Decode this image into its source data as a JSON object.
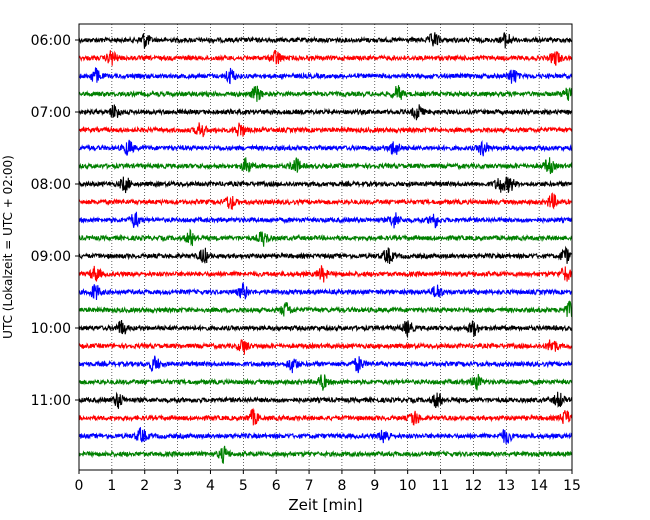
{
  "chart_data": {
    "type": "line",
    "title": "",
    "xlabel": "Zeit  [min]",
    "ylabel": "UTC (Lokalzeit = UTC + 02:00)",
    "xlim": [
      0,
      15
    ],
    "x_ticks": [
      0,
      1,
      2,
      3,
      4,
      5,
      6,
      7,
      8,
      9,
      10,
      11,
      12,
      13,
      14,
      15
    ],
    "x_tick_labels": [
      "0",
      "1",
      "2",
      "3",
      "4",
      "5",
      "6",
      "7",
      "8",
      "9",
      "10",
      "11",
      "12",
      "13",
      "14",
      "15"
    ],
    "grid": "vertical dotted lines at each minute",
    "y_tick_labels": [
      "06:00",
      "07:00",
      "08:00",
      "09:00",
      "10:00",
      "11:00"
    ],
    "trace_interval_minutes": 15,
    "trace_colors_cycle": [
      "#000000",
      "#ff0000",
      "#0000ff",
      "#008000"
    ],
    "traces": [
      {
        "start": "06:00",
        "color": "#000000",
        "events_min": [
          2.0,
          10.8,
          13.0
        ]
      },
      {
        "start": "06:15",
        "color": "#ff0000",
        "events_min": [
          1.0,
          6.0,
          14.5
        ]
      },
      {
        "start": "06:30",
        "color": "#0000ff",
        "events_min": [
          0.5,
          4.6,
          13.2
        ]
      },
      {
        "start": "06:45",
        "color": "#008000",
        "events_min": [
          5.4,
          9.7,
          14.9
        ]
      },
      {
        "start": "07:00",
        "color": "#000000",
        "events_min": [
          1.1,
          10.3
        ]
      },
      {
        "start": "07:15",
        "color": "#ff0000",
        "events_min": [
          3.7,
          4.9
        ]
      },
      {
        "start": "07:30",
        "color": "#0000ff",
        "events_min": [
          1.5,
          9.6,
          12.3
        ]
      },
      {
        "start": "07:45",
        "color": "#008000",
        "events_min": [
          5.1,
          6.6,
          14.3
        ]
      },
      {
        "start": "08:00",
        "color": "#000000",
        "events_min": [
          1.4,
          12.8,
          13.1
        ]
      },
      {
        "start": "08:15",
        "color": "#ff0000",
        "events_min": [
          4.6,
          14.4
        ]
      },
      {
        "start": "08:30",
        "color": "#0000ff",
        "events_min": [
          1.7,
          9.6,
          10.8
        ]
      },
      {
        "start": "08:45",
        "color": "#008000",
        "events_min": [
          3.4,
          5.6
        ]
      },
      {
        "start": "09:00",
        "color": "#000000",
        "events_min": [
          3.8,
          9.4,
          14.8
        ]
      },
      {
        "start": "09:15",
        "color": "#ff0000",
        "events_min": [
          0.5,
          7.4,
          14.8
        ]
      },
      {
        "start": "09:30",
        "color": "#0000ff",
        "events_min": [
          0.5,
          5.0,
          10.9
        ]
      },
      {
        "start": "09:45",
        "color": "#008000",
        "events_min": [
          6.3,
          14.9
        ]
      },
      {
        "start": "10:00",
        "color": "#000000",
        "events_min": [
          1.3,
          10.0,
          12.0
        ]
      },
      {
        "start": "10:15",
        "color": "#ff0000",
        "events_min": [
          5.0,
          14.4
        ]
      },
      {
        "start": "10:30",
        "color": "#0000ff",
        "events_min": [
          2.3,
          6.5,
          8.5
        ]
      },
      {
        "start": "10:45",
        "color": "#008000",
        "events_min": [
          7.4,
          12.1
        ]
      },
      {
        "start": "11:00",
        "color": "#000000",
        "events_min": [
          1.2,
          10.9,
          14.6
        ]
      },
      {
        "start": "11:15",
        "color": "#ff0000",
        "events_min": [
          5.3,
          10.2,
          14.8
        ]
      },
      {
        "start": "11:30",
        "color": "#0000ff",
        "events_min": [
          1.9,
          9.3,
          13.0
        ]
      },
      {
        "start": "11:45",
        "color": "#008000",
        "events_min": [
          4.4
        ]
      }
    ]
  }
}
